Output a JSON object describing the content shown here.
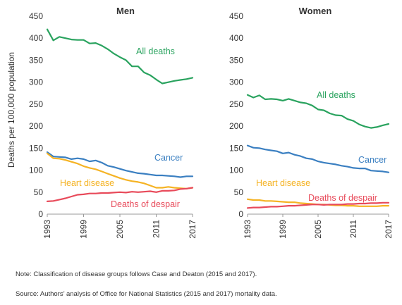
{
  "chart_data": {
    "type": "line",
    "ylabel": "Deaths per 100,000 population",
    "ylim": [
      0,
      450
    ],
    "yticks": [
      0,
      50,
      100,
      150,
      200,
      250,
      300,
      350,
      400,
      450
    ],
    "xlim": [
      1993,
      2017
    ],
    "xticks": [
      1993,
      1999,
      2005,
      2011,
      2017
    ],
    "grid": false,
    "panels": [
      {
        "title": "Men",
        "x": [
          1993,
          1994,
          1995,
          1996,
          1997,
          1998,
          1999,
          2000,
          2001,
          2002,
          2003,
          2004,
          2005,
          2006,
          2007,
          2008,
          2009,
          2010,
          2011,
          2012,
          2013,
          2014,
          2015,
          2016,
          2017
        ],
        "series": [
          {
            "name": "All deaths",
            "color": "#2aa35f",
            "values": [
              420,
              395,
              403,
              400,
              397,
              396,
              396,
              388,
              389,
              383,
              375,
              365,
              357,
              350,
              336,
              336,
              322,
              316,
              306,
              297,
              300,
              303,
              305,
              307,
              310
            ]
          },
          {
            "name": "Cancer",
            "color": "#3a7fc1",
            "values": [
              141,
              131,
              130,
              129,
              125,
              127,
              125,
              120,
              122,
              117,
              110,
              107,
              103,
              99,
              96,
              93,
              92,
              90,
              88,
              88,
              87,
              86,
              84,
              86,
              86
            ]
          },
          {
            "name": "Heart disease",
            "color": "#f5b324",
            "values": [
              138,
              127,
              126,
              123,
              119,
              115,
              109,
              105,
              102,
              97,
              92,
              87,
              82,
              78,
              75,
              73,
              70,
              65,
              60,
              60,
              62,
              60,
              59,
              58,
              60
            ]
          },
          {
            "name": "Deaths of despair",
            "color": "#e84a5a",
            "values": [
              29,
              30,
              33,
              36,
              40,
              44,
              45,
              47,
              47,
              48,
              48,
              49,
              50,
              49,
              51,
              50,
              51,
              52,
              50,
              53,
              53,
              54,
              57,
              58,
              60
            ]
          }
        ]
      },
      {
        "title": "Women",
        "x": [
          1993,
          1994,
          1995,
          1996,
          1997,
          1998,
          1999,
          2000,
          2001,
          2002,
          2003,
          2004,
          2005,
          2006,
          2007,
          2008,
          2009,
          2010,
          2011,
          2012,
          2013,
          2014,
          2015,
          2016,
          2017
        ],
        "series": [
          {
            "name": "All deaths",
            "color": "#2aa35f",
            "values": [
              271,
              265,
              270,
              261,
              262,
              261,
              258,
              262,
              258,
              254,
              252,
              247,
              238,
              236,
              229,
              225,
              224,
              216,
              212,
              204,
              199,
              196,
              198,
              202,
              205
            ]
          },
          {
            "name": "Cancer",
            "color": "#3a7fc1",
            "values": [
              156,
              151,
              150,
              147,
              145,
              143,
              138,
              140,
              135,
              132,
              127,
              125,
              120,
              117,
              115,
              113,
              110,
              108,
              105,
              104,
              104,
              99,
              98,
              97,
              95
            ]
          },
          {
            "name": "Heart disease",
            "color": "#f5b324",
            "values": [
              34,
              32,
              32,
              30,
              30,
              29,
              28,
              27,
              27,
              25,
              24,
              23,
              22,
              22,
              21,
              20,
              20,
              19,
              19,
              18,
              18,
              18,
              18,
              19,
              19
            ]
          },
          {
            "name": "Deaths of despair",
            "color": "#e84a5a",
            "values": [
              14,
              15,
              15,
              16,
              17,
              17,
              18,
              19,
              19,
              20,
              21,
              22,
              22,
              21,
              22,
              22,
              22,
              23,
              23,
              24,
              24,
              25,
              25,
              26,
              26
            ]
          }
        ]
      }
    ]
  },
  "notes": {
    "note": "Note: Classification of disease groups follows Case and Deaton (2015 and 2017).",
    "source": "Source: Authors’ analysis of Office for National Statistics (2015 and 2017) mortality data."
  }
}
